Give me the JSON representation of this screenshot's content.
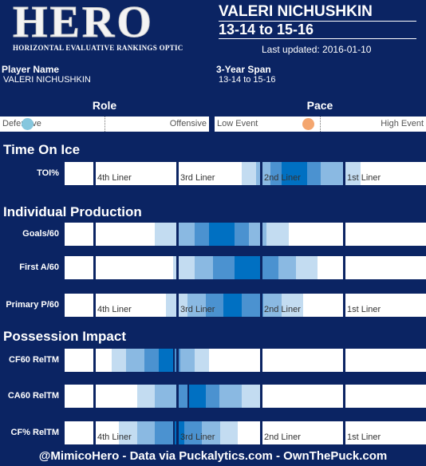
{
  "logo": {
    "text": "HERO",
    "subtitle": "HORIZONTAL EVALUATIVE RANKINGS OPTIC"
  },
  "header": {
    "player": "VALERI NICHUSHKIN",
    "span": "13-14 to 15-16",
    "updated": "Last updated: 2016-01-10"
  },
  "info": {
    "player_label": "Player Name",
    "player_value": "VALERI NICHUSHKIN",
    "span_label": "3-Year Span",
    "span_value": "13-14 to 15-16"
  },
  "role": {
    "title": "Role",
    "left": "Defensive",
    "right": "Offensive",
    "value": 0.13,
    "color": "#86c7de"
  },
  "pace": {
    "title": "Pace",
    "left": "Low Event",
    "right": "High Event",
    "value": 0.44,
    "color": "#f4a66f"
  },
  "sections": {
    "toi": "Time On Ice",
    "prod": "Individual Production",
    "poss": "Possession Impact"
  },
  "tier_labels": [
    "4th Liner",
    "3rd Liner",
    "2nd Liner",
    "1st Liner"
  ],
  "footer": "@MimicoHero - Data via Puckalytics.com - OwnThePuck.com",
  "chart_data": {
    "type": "interval-band",
    "x_scale": "fraction of the player-tier scale, 0 = lowest, 1 = highest",
    "tier_boundaries": [
      0.08,
      0.31,
      0.54,
      0.77
    ],
    "colors": [
      "#c3dcf1",
      "#8ab9e2",
      "#4b92d0",
      "#0070c2"
    ],
    "metrics": [
      {
        "name": "TOI%",
        "section": "toi",
        "tier_labels": true,
        "bands": [
          [
            0.49,
            0.82
          ],
          [
            0.53,
            0.77
          ],
          [
            0.57,
            0.71
          ],
          [
            0.6,
            0.67
          ]
        ],
        "marker": 0.54
      },
      {
        "name": "Goals/60",
        "section": "prod",
        "tier_labels": false,
        "bands": [
          [
            0.25,
            0.62
          ],
          [
            0.31,
            0.56
          ],
          [
            0.36,
            0.51
          ],
          [
            0.4,
            0.47
          ]
        ],
        "marker": 0.54
      },
      {
        "name": "First A/60",
        "section": "prod",
        "tier_labels": false,
        "bands": [
          [
            0.3,
            0.7
          ],
          [
            0.36,
            0.64
          ],
          [
            0.41,
            0.59
          ],
          [
            0.47,
            0.54
          ]
        ],
        "marker": 0.54
      },
      {
        "name": "Primary P/60",
        "section": "prod",
        "tier_labels": true,
        "bands": [
          [
            0.28,
            0.66
          ],
          [
            0.34,
            0.6
          ],
          [
            0.39,
            0.55
          ],
          [
            0.44,
            0.49
          ]
        ],
        "marker": 0.54
      },
      {
        "name": "CF60 RelTM",
        "section": "poss",
        "tier_labels": false,
        "bands": [
          [
            0.13,
            0.4
          ],
          [
            0.17,
            0.36
          ],
          [
            0.22,
            0.32
          ],
          [
            0.26,
            0.3
          ]
        ],
        "marker": 0.3
      },
      {
        "name": "CA60 RelTM",
        "section": "poss",
        "tier_labels": false,
        "bands": [
          [
            0.2,
            0.54
          ],
          [
            0.25,
            0.49
          ],
          [
            0.31,
            0.43
          ],
          [
            0.34,
            0.39
          ]
        ],
        "marker": 0.34
      },
      {
        "name": "CF% RelTM",
        "section": "poss",
        "tier_labels": true,
        "bands": [
          [
            0.15,
            0.48
          ],
          [
            0.2,
            0.43
          ],
          [
            0.25,
            0.38
          ],
          [
            0.3,
            0.33
          ]
        ],
        "marker": 0.3
      }
    ]
  }
}
